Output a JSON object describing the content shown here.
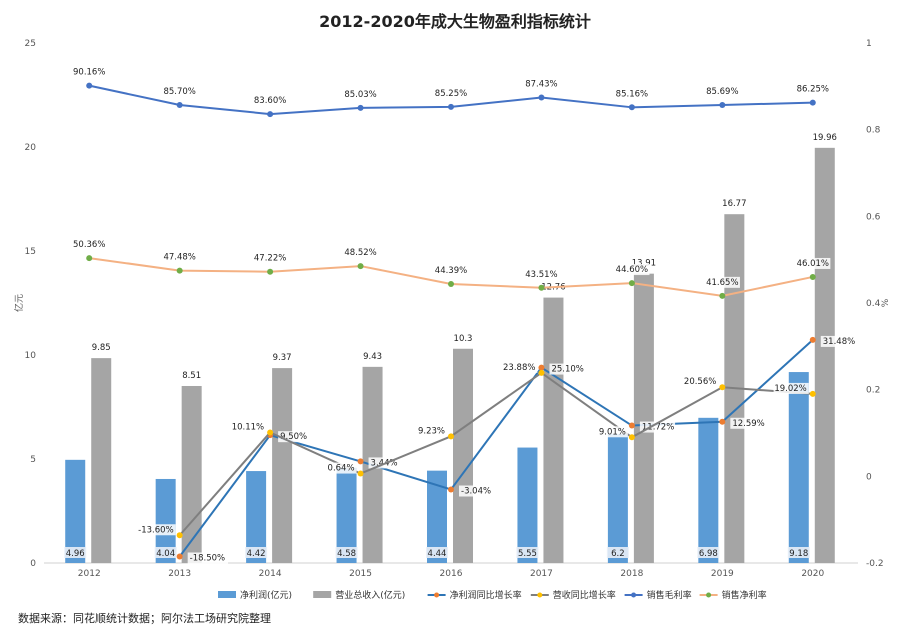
{
  "chart_data": {
    "type": "bar",
    "title": "2012-2020年成大生物盈利指标统计",
    "categories": [
      "2012",
      "2013",
      "2014",
      "2015",
      "2016",
      "2017",
      "2018",
      "2019",
      "2020"
    ],
    "y_left_label": "亿元",
    "y_right_label": "%",
    "y_left_ticks": [
      "0",
      "5",
      "10",
      "15",
      "20",
      "25"
    ],
    "y_right_ticks": [
      "-0.2",
      "0",
      "0.2",
      "0.4",
      "0.6",
      "0.8",
      "1"
    ],
    "ylim_left": [
      0,
      25
    ],
    "ylim_right": [
      -0.2,
      1
    ],
    "grid": false,
    "legend_position": "bottom",
    "bar_series": [
      {
        "name": "净利润(亿元)",
        "color": "#5b9bd5",
        "values": [
          4.96,
          4.04,
          4.42,
          4.58,
          4.44,
          5.55,
          6.2,
          6.98,
          9.18
        ],
        "labels": [
          "4.96",
          "4.04",
          "4.42",
          "4.58",
          "4.44",
          "5.55",
          "6.2",
          "6.98",
          "9.18"
        ]
      },
      {
        "name": "营业总收入(亿元)",
        "color": "#a5a5a5",
        "values": [
          9.85,
          8.51,
          9.37,
          9.43,
          10.3,
          12.76,
          13.91,
          16.77,
          19.96
        ],
        "labels": [
          "9.85",
          "8.51",
          "9.37",
          "9.43",
          "10.3",
          "12.76",
          "13.91",
          "16.77",
          "19.96"
        ]
      }
    ],
    "line_series": [
      {
        "name": "净利润同比增长率",
        "color": "#2e75b6",
        "marker": "#ed7d31",
        "values": [
          null,
          -0.185,
          0.095,
          0.0344,
          -0.0304,
          0.251,
          0.1172,
          0.1259,
          0.3148
        ],
        "labels": [
          "",
          "-18.50%",
          "9.50%",
          "3.44%",
          "-3.04%",
          "25.10%",
          "11.72%",
          "12.59%",
          "31.48%"
        ]
      },
      {
        "name": "营收同比增长率",
        "color": "#7f7f7f",
        "marker": "#ffc000",
        "values": [
          null,
          -0.136,
          0.1011,
          0.0064,
          0.0923,
          0.2388,
          0.0901,
          0.2056,
          0.1902
        ],
        "labels": [
          "",
          "-13.60%",
          "10.11%",
          "0.64%",
          "9.23%",
          "23.88%",
          "9.01%",
          "20.56%",
          "19.02%"
        ]
      },
      {
        "name": "销售毛利率",
        "color": "#4472c4",
        "marker": "#4472c4",
        "values": [
          0.9016,
          0.857,
          0.836,
          0.8503,
          0.8525,
          0.8743,
          0.8516,
          0.8569,
          0.8625
        ],
        "labels": [
          "90.16%",
          "85.70%",
          "83.60%",
          "85.03%",
          "85.25%",
          "87.43%",
          "85.16%",
          "85.69%",
          "86.25%"
        ]
      },
      {
        "name": "销售净利率",
        "color": "#f4b183",
        "marker": "#70ad47",
        "values": [
          0.5036,
          0.4748,
          0.4722,
          0.4852,
          0.4439,
          0.4351,
          0.446,
          0.4165,
          0.4601
        ],
        "labels": [
          "50.36%",
          "47.48%",
          "47.22%",
          "48.52%",
          "44.39%",
          "43.51%",
          "44.60%",
          "41.65%",
          "46.01%"
        ]
      }
    ]
  },
  "footer": {
    "source": "数据来源：同花顺统计数据；阿尔法工场研究院整理"
  }
}
